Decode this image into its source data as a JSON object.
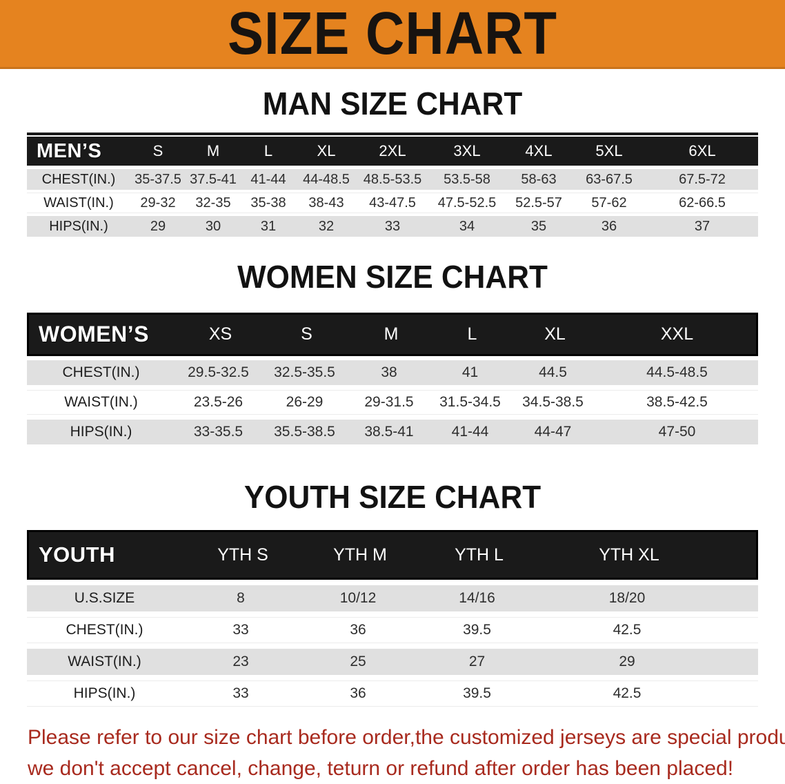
{
  "colors": {
    "banner_bg": "#e5831f",
    "header_bg": "#1a1a1a",
    "stripe_bg": "#e0e0e0",
    "disclaimer_text": "#a82a1e"
  },
  "banner": {
    "title": "SIZE CHART"
  },
  "sections": [
    {
      "heading": "MAN SIZE CHART",
      "table": {
        "header_label": "MEN’S",
        "columns": [
          "S",
          "M",
          "L",
          "XL",
          "2XL",
          "3XL",
          "4XL",
          "5XL",
          "6XL"
        ],
        "rows": [
          {
            "label": "CHEST(IN.)",
            "values": [
              "35-37.5",
              "37.5-41",
              "41-44",
              "44-48.5",
              "48.5-53.5",
              "53.5-58",
              "58-63",
              "63-67.5",
              "67.5-72"
            ]
          },
          {
            "label": "WAIST(IN.)",
            "values": [
              "29-32",
              "32-35",
              "35-38",
              "38-43",
              "43-47.5",
              "47.5-52.5",
              "52.5-57",
              "57-62",
              "62-66.5"
            ]
          },
          {
            "label": "HIPS(IN.)",
            "values": [
              "29",
              "30",
              "31",
              "32",
              "33",
              "34",
              "35",
              "36",
              "37"
            ]
          }
        ]
      }
    },
    {
      "heading": "WOMEN SIZE CHART",
      "table": {
        "header_label": "WOMEN’S",
        "columns": [
          "XS",
          "S",
          "M",
          "L",
          "XL",
          "XXL"
        ],
        "rows": [
          {
            "label": "CHEST(IN.)",
            "values": [
              "29.5-32.5",
              "32.5-35.5",
              "38",
              "41",
              "44.5",
              "44.5-48.5"
            ]
          },
          {
            "label": "WAIST(IN.)",
            "values": [
              "23.5-26",
              "26-29",
              "29-31.5",
              "31.5-34.5",
              "34.5-38.5",
              "38.5-42.5"
            ]
          },
          {
            "label": "HIPS(IN.)",
            "values": [
              "33-35.5",
              "35.5-38.5",
              "38.5-41",
              "41-44",
              "44-47",
              "47-50"
            ]
          }
        ]
      }
    },
    {
      "heading": "YOUTH SIZE CHART",
      "table": {
        "header_label": "YOUTH",
        "columns": [
          "YTH S",
          "YTH M",
          "YTH L",
          "YTH XL"
        ],
        "rows": [
          {
            "label": "U.S.SIZE",
            "values": [
              "8",
              "10/12",
              "14/16",
              "18/20"
            ]
          },
          {
            "label": "CHEST(IN.)",
            "values": [
              "33",
              "36",
              "39.5",
              "42.5"
            ]
          },
          {
            "label": "WAIST(IN.)",
            "values": [
              "23",
              "25",
              "27",
              "29"
            ]
          },
          {
            "label": "HIPS(IN.)",
            "values": [
              "33",
              "36",
              "39.5",
              "42.5"
            ]
          }
        ]
      }
    }
  ],
  "disclaimer": {
    "line1": "Please refer to our size chart before order,the customized jerseys are special products,",
    "line2": "we don't accept cancel, change, teturn or refund after order has been placed!"
  }
}
